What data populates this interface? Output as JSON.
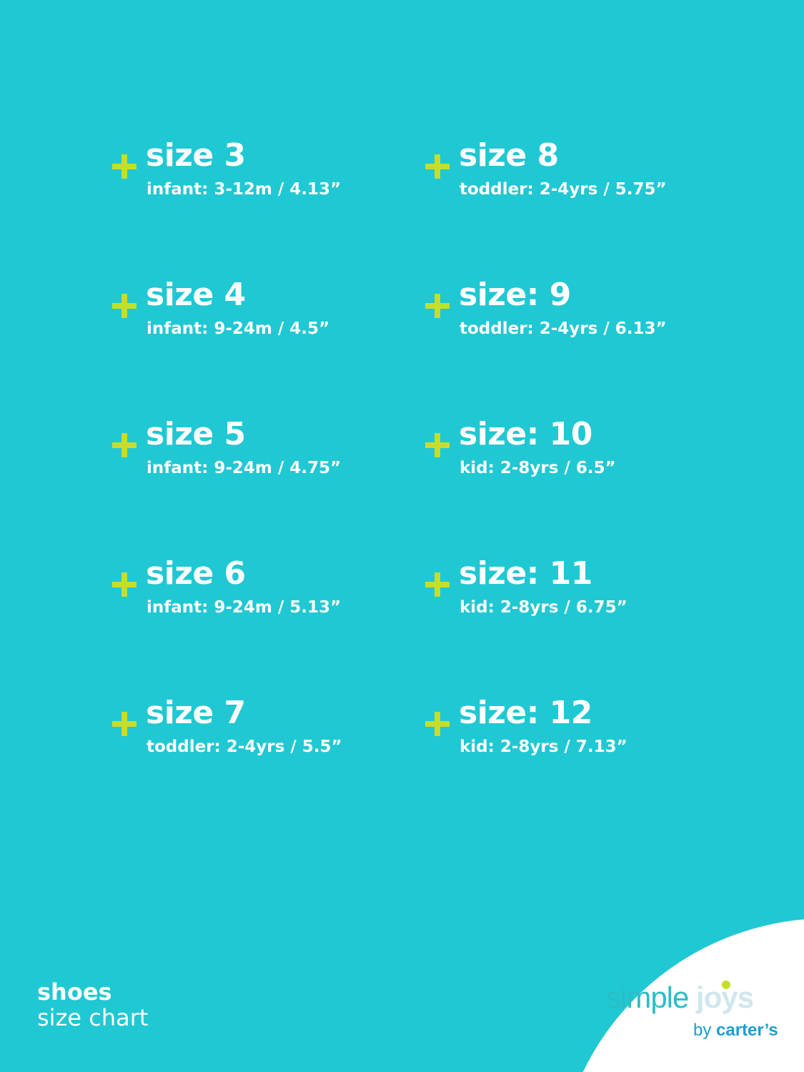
{
  "colors": {
    "background": "#1fc8d3",
    "accent_plus": "#c7dd2b",
    "text": "#ffffff"
  },
  "left_column": [
    {
      "title": "size 3",
      "detail": "infant: 3-12m / 4.13”"
    },
    {
      "title": "size 4",
      "detail": "infant: 9-24m / 4.5”"
    },
    {
      "title": "size 5",
      "detail": "infant: 9-24m / 4.75”"
    },
    {
      "title": "size 6",
      "detail": "infant: 9-24m / 5.13”"
    },
    {
      "title": "size 7",
      "detail": "toddler: 2-4yrs / 5.5”"
    }
  ],
  "right_column": [
    {
      "title": "size 8",
      "detail": "toddler: 2-4yrs / 5.75”"
    },
    {
      "title": "size: 9",
      "detail": "toddler: 2-4yrs / 6.13”"
    },
    {
      "title": "size: 10",
      "detail": "kid: 2-8yrs / 6.5”"
    },
    {
      "title": "size: 11",
      "detail": "kid: 2-8yrs / 6.75”"
    },
    {
      "title": "size: 12",
      "detail": "kid: 2-8yrs / 7.13”"
    }
  ],
  "footer": {
    "line1": "shoes",
    "line2": "size chart"
  },
  "logo": {
    "simple": "simple",
    "joys": "joys",
    "by": "by",
    "carters": "carter’s"
  }
}
